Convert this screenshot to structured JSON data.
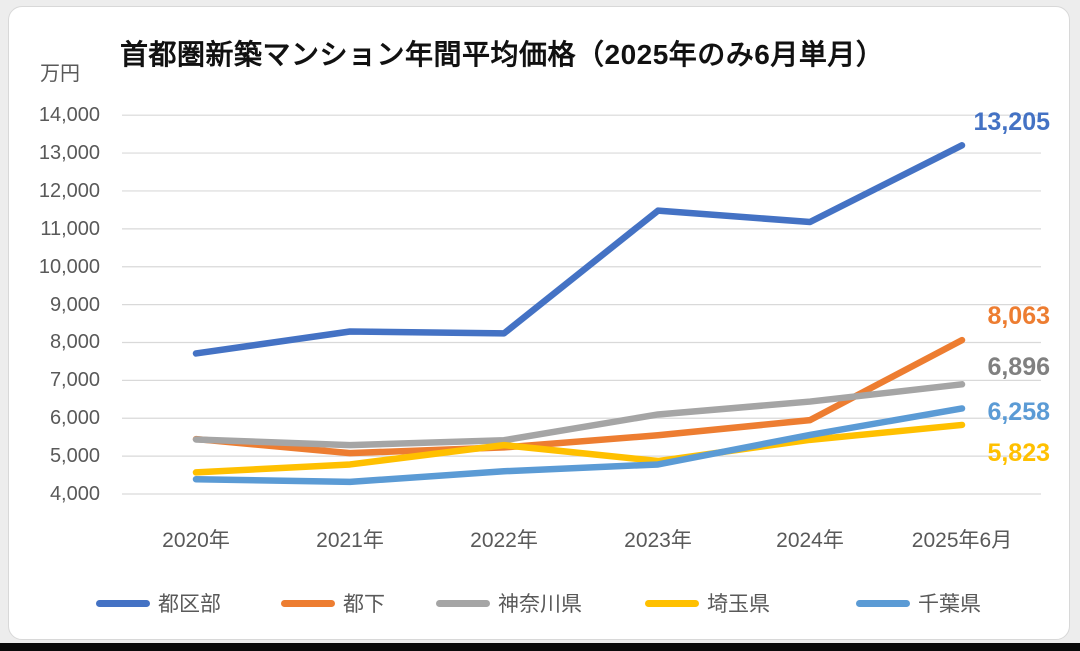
{
  "page": {
    "background_color": "#ededed",
    "card_color": "#ffffff",
    "bottom_bar_color": "#0a0a0a"
  },
  "chart_data": {
    "type": "line",
    "title": "首都圏新築マンション年間平均価格（2025年のみ6月単月）",
    "unit": "万円",
    "categories": [
      "2020年",
      "2021年",
      "2022年",
      "2023年",
      "2024年",
      "2025年6月"
    ],
    "series": [
      {
        "name": "都区部",
        "color": "#4472C4",
        "label_color": "#4472C4",
        "values": [
          7710,
          8290,
          8240,
          11480,
          11180,
          13205
        ],
        "end_label": "13,205"
      },
      {
        "name": "都下",
        "color": "#ED7D31",
        "label_color": "#ED7D31",
        "values": [
          5450,
          5080,
          5230,
          5550,
          5950,
          8063
        ],
        "end_label": "8,063"
      },
      {
        "name": "神奈川県",
        "color": "#A5A5A5",
        "label_color": "#808080",
        "values": [
          5440,
          5290,
          5420,
          6100,
          6440,
          6896
        ],
        "end_label": "6,896"
      },
      {
        "name": "埼玉県",
        "color": "#FFC000",
        "label_color": "#FFC000",
        "values": [
          4570,
          4780,
          5290,
          4870,
          5430,
          5823
        ],
        "end_label": "5,823"
      },
      {
        "name": "千葉県",
        "color": "#5B9BD5",
        "label_color": "#5B9BD5",
        "values": [
          4390,
          4320,
          4600,
          4780,
          5560,
          6258
        ],
        "end_label": "6,258"
      }
    ],
    "ylim": [
      4000,
      14000
    ],
    "y_step": 1000,
    "y_tick_labels": [
      "14,000",
      "13,000",
      "12,000",
      "11,000",
      "10,000",
      "9,000",
      "8,000",
      "7,000",
      "6,000",
      "5,000",
      "4,000"
    ],
    "grid": "horizontal",
    "grid_color": "#d9d9d9",
    "axis_text_color": "#595959",
    "legend_position": "bottom"
  }
}
